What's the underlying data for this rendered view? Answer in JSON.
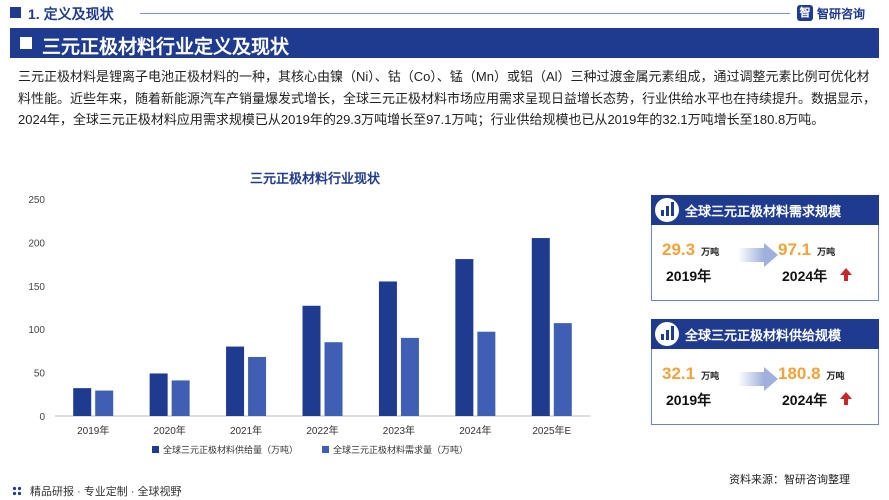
{
  "header": {
    "section_title": "1. 定义及现状",
    "brand": "智研咨询",
    "logo_glyph": "智"
  },
  "banner": {
    "title": "三元正极材料行业定义及现状"
  },
  "intro_text": "三元正极材料是锂离子电池正极材料的一种，其核心由镍（Ni）、钴（Co）、锰（Mn）或铝（Al）三种过渡金属元素组成，通过调整元素比例可优化材料性能。近些年来，随着新能源汽车产销量爆发式增长，全球三元正极材料市场应用需求呈现日益增长态势，行业供给水平也在持续提升。数据显示，2024年，全球三元正极材料应用需求规模已从2019年的29.3万吨增长至97.1万吨；行业供给规模也已从2019年的32.1万吨增长至180.8万吨。",
  "chart_data": {
    "type": "bar",
    "title": "三元正极材料行业现状",
    "categories": [
      "2019年",
      "2020年",
      "2021年",
      "2022年",
      "2023年",
      "2024年",
      "2025年E"
    ],
    "series": [
      {
        "name": "全球三元正极材料供给量（万吨）",
        "color": "#1f3b8f",
        "values": [
          32.1,
          49,
          80,
          127,
          155,
          180.8,
          205
        ]
      },
      {
        "name": "全球三元正极材料需求量（万吨）",
        "color": "#3f5fb5",
        "values": [
          29.3,
          41,
          68,
          85,
          90,
          97.1,
          107
        ]
      }
    ],
    "yticks": [
      0,
      50,
      100,
      150,
      200,
      250
    ],
    "ylim": [
      0,
      250
    ],
    "grid": false,
    "legend_position": "bottom"
  },
  "cards": [
    {
      "title": "全球三元正极材料需求规模",
      "from_value": "29.3",
      "to_value": "97.1",
      "unit": "万吨",
      "from_year": "2019年",
      "to_year": "2024年"
    },
    {
      "title": "全球三元正极材料供给规模",
      "from_value": "32.1",
      "to_value": "180.8",
      "unit": "万吨",
      "from_year": "2019年",
      "to_year": "2024年"
    }
  ],
  "footer": {
    "tagline": "精品研报 · 专业定制 · 全球视野",
    "source": "资料来源：智研咨询整理"
  }
}
